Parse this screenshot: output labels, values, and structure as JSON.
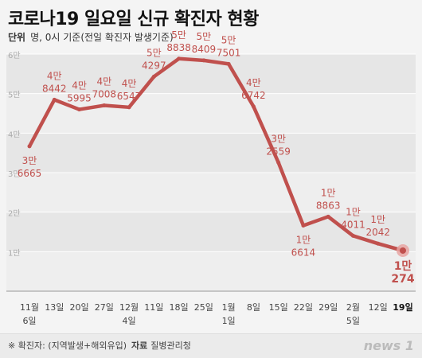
{
  "header": {
    "title": "코로나19 일요일 신규 확진자 현황",
    "unit_label": "단위",
    "unit_text": "명, 0시 기준(전일 확진자 발생기준)"
  },
  "footer": {
    "note": "※ 확진자: (지역발생+해외유입)",
    "source_label": "자료",
    "source": "질병관리청",
    "logo": "news 1"
  },
  "colors": {
    "line": "#c0504d",
    "highlight": "#e8a4a2"
  },
  "chart_data": {
    "type": "line",
    "title": "코로나19 일요일 신규 확진자 현황",
    "xlabel": "",
    "ylabel": "",
    "ylim": [
      0,
      60000
    ],
    "y_ticks": [
      "1만",
      "2만",
      "3만",
      "4만",
      "5만",
      "6만"
    ],
    "categories": [
      "11월 6일",
      "13일",
      "20일",
      "27일",
      "12월 4일",
      "11일",
      "18일",
      "25일",
      "1월 1일",
      "8일",
      "15일",
      "22일",
      "29일",
      "2월 5일",
      "12일",
      "19일"
    ],
    "x_labels": [
      [
        "11월",
        "6일"
      ],
      [
        "13일"
      ],
      [
        "20일"
      ],
      [
        "27일"
      ],
      [
        "12월",
        "4일"
      ],
      [
        "11일"
      ],
      [
        "18일"
      ],
      [
        "25일"
      ],
      [
        "1월",
        "1일"
      ],
      [
        "8일"
      ],
      [
        "15일"
      ],
      [
        "22일"
      ],
      [
        "29일"
      ],
      [
        "2월",
        "5일"
      ],
      [
        "12일"
      ],
      [
        "19일"
      ]
    ],
    "series": [
      {
        "values": [
          36665,
          48442,
          45995,
          47008,
          46547,
          54297,
          58838,
          58409,
          57501,
          46742,
          32559,
          16614,
          18863,
          14011,
          12042,
          10274
        ]
      }
    ],
    "data_labels": [
      [
        "3만",
        "6665"
      ],
      [
        "4만",
        "8442"
      ],
      [
        "4만",
        "5995"
      ],
      [
        "4만",
        "7008"
      ],
      [
        "4만",
        "6547"
      ],
      [
        "5만",
        "4297"
      ],
      [
        "5만",
        "8838"
      ],
      [
        "5만",
        "8409"
      ],
      [
        "5만",
        "7501"
      ],
      [
        "4만",
        "6742"
      ],
      [
        "3만",
        "2559"
      ],
      [
        "1만",
        "6614"
      ],
      [
        "1만",
        "8863"
      ],
      [
        "1만",
        "4011"
      ],
      [
        "1만",
        "2042"
      ],
      [
        "1만",
        "274"
      ]
    ],
    "grid": true,
    "legend": "none"
  }
}
